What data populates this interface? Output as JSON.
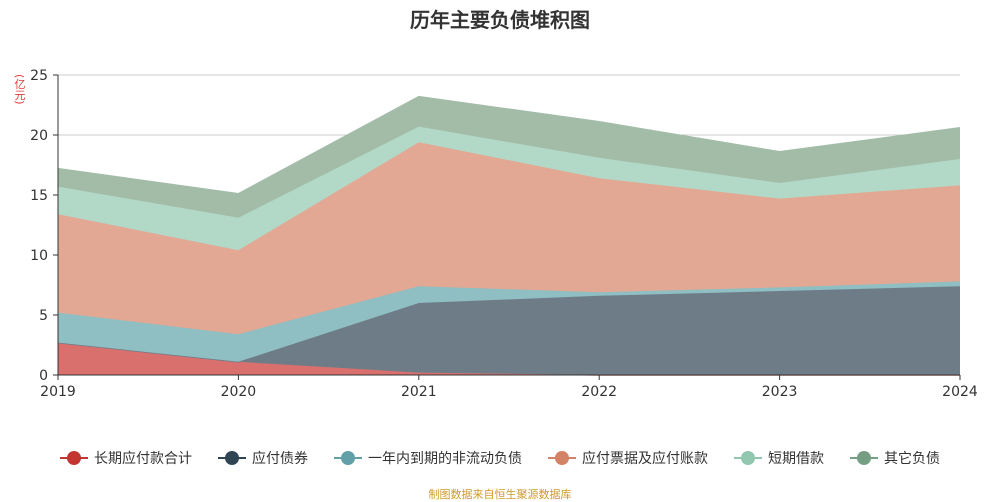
{
  "title": "历年主要负债堆积图",
  "unit_label": "(亿元)",
  "footer": "制图数据来自恒生聚源数据库",
  "chart_data": {
    "type": "area",
    "stacked": true,
    "title": "历年主要负债堆积图",
    "ylabel": "(亿元)",
    "x": [
      "2019",
      "2020",
      "2021",
      "2022",
      "2023",
      "2024"
    ],
    "ylim": [
      0,
      25
    ],
    "yticks": [
      0,
      5,
      10,
      15,
      20,
      25
    ],
    "grid": true,
    "legend_position": "bottom",
    "series": [
      {
        "name": "长期应付款合计",
        "color": "#c23531",
        "fill": "#d9706e",
        "values": [
          2.7,
          1.1,
          0.2,
          0.0,
          0.0,
          0.0
        ]
      },
      {
        "name": "应付债券",
        "color": "#2f4554",
        "fill": "#6e7c88",
        "values": [
          0.0,
          0.0,
          5.8,
          6.6,
          7.0,
          7.4
        ]
      },
      {
        "name": "一年内到期的非流动负债",
        "color": "#61a0a8",
        "fill": "#8fbec3",
        "values": [
          2.5,
          2.3,
          1.4,
          0.3,
          0.3,
          0.4
        ]
      },
      {
        "name": "应付票据及应付账款",
        "color": "#d48265",
        "fill": "#e2a893",
        "values": [
          8.2,
          7.0,
          12.0,
          9.5,
          7.4,
          8.0
        ]
      },
      {
        "name": "短期借款",
        "color": "#91c7ae",
        "fill": "#b2d9c7",
        "values": [
          2.3,
          2.7,
          1.3,
          1.7,
          1.3,
          2.2
        ]
      },
      {
        "name": "其它负债",
        "color": "#749f83",
        "fill": "#a3bca8",
        "values": [
          1.5,
          2.0,
          2.5,
          3.0,
          2.6,
          2.6
        ]
      }
    ]
  }
}
